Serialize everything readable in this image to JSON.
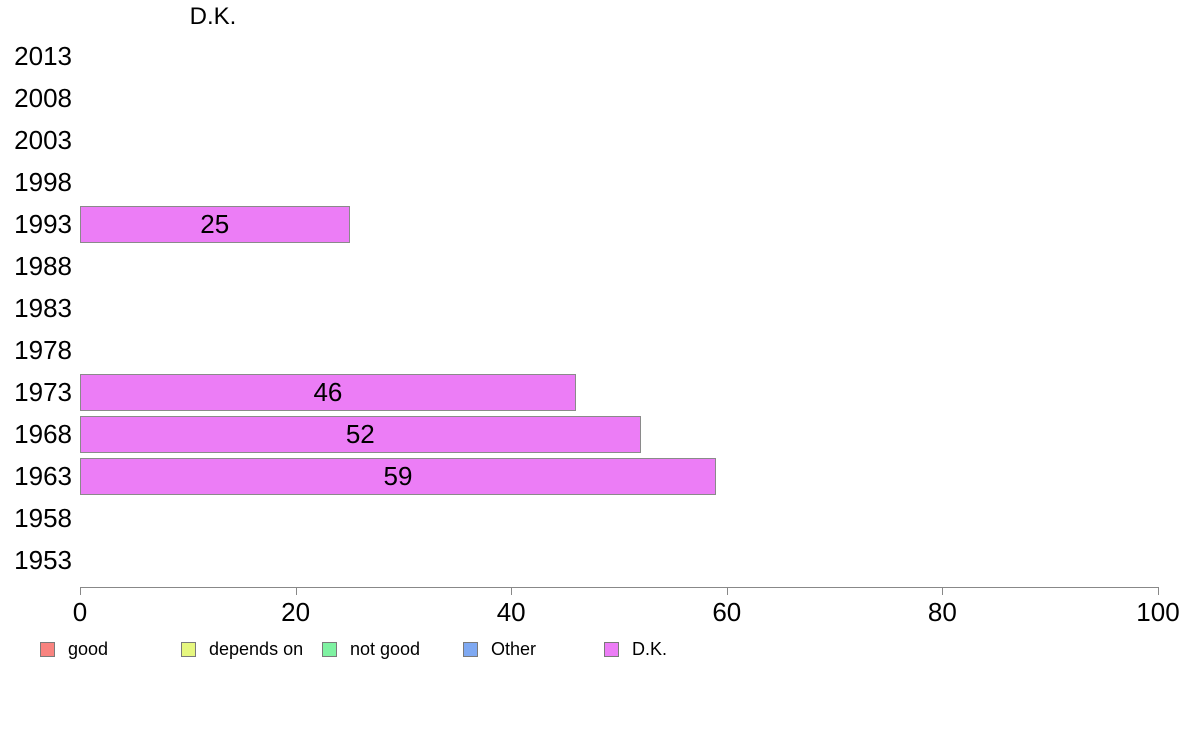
{
  "chart_data": {
    "type": "bar",
    "orientation": "horizontal",
    "title": "D.K.",
    "categories": [
      "2013",
      "2008",
      "2003",
      "1998",
      "1993",
      "1988",
      "1983",
      "1978",
      "1973",
      "1968",
      "1963",
      "1958",
      "1953"
    ],
    "values": [
      null,
      null,
      null,
      null,
      25,
      null,
      null,
      null,
      46,
      52,
      59,
      null,
      null
    ],
    "xlabel": "",
    "ylabel": "",
    "xlim": [
      0,
      100
    ],
    "xticks": [
      0,
      20,
      40,
      60,
      80,
      100
    ],
    "grid": false,
    "bar_color": "#EC7DF6",
    "bar_border_color": "#8A8A8A",
    "axis_color": "#888888",
    "text_color": "#000000",
    "legend": {
      "position": "bottom",
      "items": [
        {
          "label": "good",
          "color": "#F8837F"
        },
        {
          "label": "depends on",
          "color": "#E6F77F"
        },
        {
          "label": "not good",
          "color": "#7FF2A2"
        },
        {
          "label": "Other",
          "color": "#7FA9F2"
        },
        {
          "label": "D.K.",
          "color": "#EC7DF6"
        }
      ]
    }
  }
}
